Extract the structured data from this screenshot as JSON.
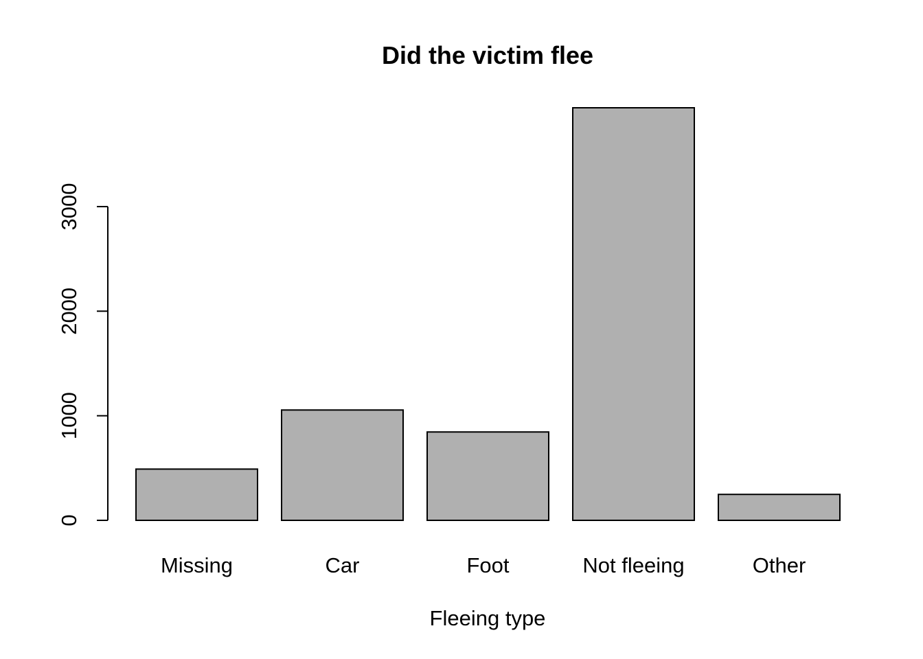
{
  "chart_data": {
    "type": "bar",
    "title": "Did the victim flee",
    "xlabel": "Fleeing type",
    "ylabel": "",
    "categories": [
      "Missing",
      "Car",
      "Foot",
      "Not fleeing",
      "Other"
    ],
    "values": [
      490,
      1055,
      845,
      3945,
      248
    ],
    "yticks": [
      "0",
      "1000",
      "2000",
      "3000"
    ],
    "ytick_values": [
      0,
      1000,
      2000,
      3000
    ],
    "ylim": [
      0,
      3945
    ],
    "bar_color": "#b0b0b0",
    "grid": false,
    "legend": "none"
  }
}
